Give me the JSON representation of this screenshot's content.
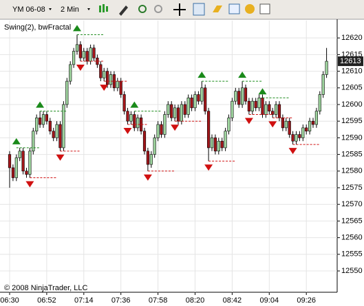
{
  "toolbar": {
    "instrument": "YM 06-08",
    "interval": "2 Min"
  },
  "chart_data": {
    "type": "candlestick",
    "indicator_label": "Swing(2), bwFractal",
    "copyright": "© 2008 NinjaTrader, LLC",
    "categories": [
      "06:30",
      null,
      null,
      null,
      null,
      null,
      null,
      null,
      null,
      null,
      null,
      "06:52",
      null,
      null,
      null,
      null,
      null,
      null,
      null,
      null,
      null,
      null,
      "07:14",
      null,
      null,
      null,
      null,
      null,
      null,
      null,
      null,
      null,
      null,
      "07:36",
      null,
      null,
      null,
      null,
      null,
      null,
      null,
      null,
      null,
      null,
      "07:58",
      null,
      null,
      null,
      null,
      null,
      null,
      null,
      null,
      null,
      null,
      "08:20",
      null,
      null,
      null,
      null,
      null,
      null,
      null,
      null,
      null,
      null,
      "08:42",
      null,
      null,
      null,
      null,
      null,
      null,
      null,
      null,
      null,
      null,
      "09:04",
      null,
      null,
      null,
      null,
      null,
      null,
      null,
      null,
      null,
      null,
      "09:26",
      null,
      null,
      null,
      null,
      null,
      null
    ],
    "open": [
      12585,
      12581,
      12578,
      12584,
      12586,
      12580,
      12579,
      12586,
      12592,
      12596,
      12594,
      12597,
      12595,
      12592,
      12590,
      12594,
      12587,
      12600,
      12607,
      12612,
      12616,
      12618,
      12614,
      12616,
      12613,
      12617,
      12614,
      12612,
      12608,
      12610,
      12606,
      12609,
      12605,
      12607,
      12603,
      12598,
      12595,
      12597,
      12593,
      12596,
      12592,
      12586,
      12582,
      12585,
      12590,
      12594,
      12591,
      12597,
      12600,
      12596,
      12599,
      12595,
      12600,
      12597,
      12602,
      12599,
      12603,
      12601,
      12605,
      12598,
      12587,
      12590,
      12586,
      12589,
      12587,
      12592,
      12596,
      12601,
      12604,
      12600,
      12605,
      12601,
      12598,
      12601,
      12599,
      12602,
      12597,
      12600,
      12598,
      12597,
      12600,
      12596,
      12593,
      12595,
      12591,
      12589,
      12591,
      12590,
      12593,
      12592,
      12595,
      12594,
      12598,
      12603,
      12609
    ],
    "high": [
      12586,
      12582,
      12585,
      12587,
      12587,
      12581,
      12587,
      12593,
      12597,
      12598,
      12598,
      12598,
      12596,
      12593,
      12595,
      12595,
      12601,
      12608,
      12613,
      12617,
      12621,
      12619,
      12617,
      12617,
      12618,
      12618,
      12615,
      12613,
      12611,
      12611,
      12610,
      12610,
      12608,
      12608,
      12604,
      12599,
      12598,
      12598,
      12597,
      12597,
      12593,
      12587,
      12586,
      12591,
      12595,
      12595,
      12598,
      12601,
      12601,
      12600,
      12600,
      12601,
      12601,
      12603,
      12603,
      12604,
      12604,
      12607,
      12606,
      12599,
      12591,
      12591,
      12590,
      12590,
      12593,
      12597,
      12602,
      12605,
      12605,
      12607,
      12606,
      12602,
      12602,
      12602,
      12603,
      12603,
      12601,
      12601,
      12599,
      12601,
      12601,
      12597,
      12596,
      12596,
      12592,
      12592,
      12592,
      12594,
      12594,
      12596,
      12596,
      12599,
      12604,
      12610,
      12617
    ],
    "low": [
      12575,
      12577,
      12577,
      12583,
      12579,
      12578,
      12578,
      12585,
      12591,
      12593,
      12593,
      12594,
      12591,
      12589,
      12589,
      12586,
      12586,
      12599,
      12606,
      12611,
      12615,
      12613,
      12613,
      12612,
      12612,
      12613,
      12611,
      12607,
      12607,
      12605,
      12605,
      12604,
      12604,
      12602,
      12597,
      12594,
      12594,
      12592,
      12592,
      12591,
      12585,
      12580,
      12581,
      12584,
      12589,
      12590,
      12590,
      12596,
      12595,
      12595,
      12594,
      12594,
      12596,
      12596,
      12598,
      12598,
      12600,
      12600,
      12597,
      12583,
      12586,
      12585,
      12585,
      12586,
      12586,
      12591,
      12595,
      12600,
      12599,
      12599,
      12600,
      12597,
      12597,
      12598,
      12598,
      12596,
      12596,
      12597,
      12596,
      12596,
      12595,
      12592,
      12592,
      12590,
      12588,
      12588,
      12589,
      12589,
      12591,
      12591,
      12593,
      12593,
      12597,
      12602,
      12608
    ],
    "close": [
      12581,
      12578,
      12584,
      12586,
      12580,
      12579,
      12586,
      12592,
      12596,
      12594,
      12597,
      12595,
      12592,
      12590,
      12594,
      12587,
      12600,
      12607,
      12612,
      12616,
      12618,
      12614,
      12616,
      12613,
      12617,
      12614,
      12612,
      12608,
      12610,
      12606,
      12609,
      12605,
      12607,
      12603,
      12598,
      12595,
      12597,
      12593,
      12596,
      12592,
      12586,
      12582,
      12585,
      12590,
      12594,
      12591,
      12597,
      12600,
      12596,
      12599,
      12595,
      12600,
      12597,
      12602,
      12599,
      12603,
      12601,
      12605,
      12598,
      12587,
      12590,
      12586,
      12589,
      12587,
      12592,
      12596,
      12601,
      12604,
      12600,
      12605,
      12601,
      12598,
      12601,
      12599,
      12602,
      12597,
      12600,
      12598,
      12597,
      12600,
      12596,
      12593,
      12595,
      12591,
      12589,
      12591,
      12590,
      12593,
      12592,
      12595,
      12594,
      12598,
      12603,
      12609,
      12613
    ],
    "swing_high": [
      null,
      null,
      12587,
      null,
      null,
      null,
      null,
      null,
      null,
      12598,
      null,
      null,
      null,
      null,
      null,
      null,
      null,
      null,
      null,
      null,
      12621,
      null,
      null,
      null,
      null,
      null,
      null,
      null,
      null,
      null,
      null,
      null,
      null,
      null,
      null,
      null,
      null,
      12598,
      null,
      null,
      null,
      null,
      null,
      null,
      null,
      null,
      null,
      null,
      null,
      null,
      null,
      null,
      null,
      null,
      null,
      null,
      null,
      12607,
      null,
      null,
      null,
      null,
      null,
      null,
      null,
      null,
      null,
      null,
      null,
      12607,
      null,
      null,
      null,
      null,
      null,
      12602,
      null,
      null,
      null,
      null,
      null,
      null,
      null,
      null,
      null,
      null,
      null,
      null,
      null,
      null,
      null,
      null,
      null,
      null,
      null
    ],
    "swing_low": [
      null,
      null,
      null,
      null,
      null,
      null,
      12578,
      null,
      null,
      null,
      null,
      null,
      null,
      null,
      null,
      12586,
      null,
      null,
      null,
      null,
      null,
      12613,
      null,
      null,
      null,
      null,
      null,
      null,
      12607,
      null,
      null,
      null,
      null,
      null,
      null,
      12594,
      null,
      null,
      null,
      null,
      null,
      12580,
      null,
      null,
      null,
      null,
      null,
      null,
      null,
      12595,
      null,
      null,
      null,
      null,
      null,
      null,
      null,
      null,
      null,
      12583,
      null,
      null,
      null,
      null,
      null,
      null,
      null,
      null,
      null,
      null,
      null,
      12597,
      null,
      null,
      null,
      null,
      null,
      null,
      12596,
      null,
      null,
      null,
      null,
      null,
      12588,
      null,
      null,
      null,
      null,
      null,
      null,
      null,
      null,
      null,
      null
    ],
    "up_color": "#9fd59f",
    "down_color": "#a3161a",
    "swing_high_color": "#1a8a1a",
    "swing_low_color": "#d01010",
    "ylim": [
      12543.6,
      12625.2
    ],
    "yticks": [
      12550,
      12555,
      12560,
      12565,
      12570,
      12575,
      12580,
      12585,
      12590,
      12595,
      12600,
      12605,
      12610,
      12615,
      12620
    ],
    "grid": true
  }
}
